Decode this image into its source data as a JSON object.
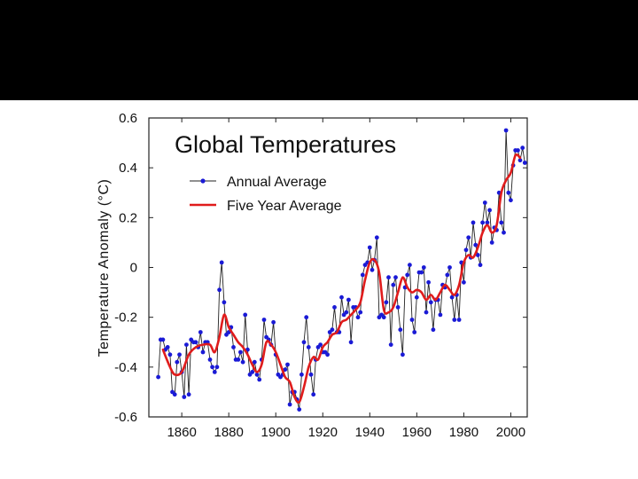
{
  "colors": {
    "band": "#000000",
    "annual": "#1a1ad6",
    "annual_line": "#222222",
    "five_year": "#e01c1c"
  },
  "chart_data": {
    "type": "line",
    "title": "Global Temperatures",
    "xlabel": "",
    "ylabel": "Temperature Anomaly (°C)",
    "xlim": [
      1846,
      2007
    ],
    "ylim": [
      -0.6,
      0.6
    ],
    "xticks": [
      1860,
      1880,
      1900,
      1920,
      1940,
      1960,
      1980,
      2000
    ],
    "xtick_labels": [
      "1860",
      "1880",
      "1900",
      "1920",
      "1940",
      "1960",
      "1980",
      "2000"
    ],
    "yticks": [
      0.6,
      0.4,
      0.2,
      0,
      -0.2,
      -0.4,
      -0.6
    ],
    "ytick_labels": [
      "0.6",
      "0.4",
      "0.2",
      "0",
      "-0.2",
      "-0.4",
      "-0.6"
    ],
    "legend": {
      "position": "upper-left",
      "annual_label": "Annual Average",
      "five_year_label": "Five Year Average"
    },
    "series": [
      {
        "name": "Annual Average",
        "style": "line+markers",
        "x_start": 1850,
        "values": [
          -0.44,
          -0.29,
          -0.29,
          -0.33,
          -0.32,
          -0.35,
          -0.5,
          -0.51,
          -0.38,
          -0.35,
          -0.42,
          -0.52,
          -0.31,
          -0.51,
          -0.29,
          -0.3,
          -0.3,
          -0.32,
          -0.26,
          -0.34,
          -0.3,
          -0.3,
          -0.37,
          -0.4,
          -0.42,
          -0.4,
          -0.09,
          0.02,
          -0.14,
          -0.27,
          -0.26,
          -0.24,
          -0.32,
          -0.37,
          -0.37,
          -0.34,
          -0.38,
          -0.19,
          -0.33,
          -0.43,
          -0.42,
          -0.38,
          -0.43,
          -0.45,
          -0.37,
          -0.21,
          -0.28,
          -0.29,
          -0.31,
          -0.22,
          -0.35,
          -0.43,
          -0.44,
          -0.43,
          -0.41,
          -0.39,
          -0.55,
          -0.5,
          -0.5,
          -0.53,
          -0.57,
          -0.43,
          -0.3,
          -0.2,
          -0.32,
          -0.43,
          -0.51,
          -0.37,
          -0.32,
          -0.31,
          -0.34,
          -0.34,
          -0.35,
          -0.26,
          -0.25,
          -0.16,
          -0.26,
          -0.26,
          -0.12,
          -0.19,
          -0.18,
          -0.13,
          -0.3,
          -0.16,
          -0.16,
          -0.2,
          -0.18,
          -0.03,
          0.01,
          0.02,
          0.08,
          -0.01,
          0.03,
          0.12,
          -0.2,
          -0.19,
          -0.2,
          -0.14,
          -0.04,
          -0.31,
          -0.07,
          -0.04,
          -0.16,
          -0.25,
          -0.35,
          -0.08,
          -0.03,
          0.01,
          -0.21,
          -0.26,
          -0.12,
          -0.02,
          -0.02,
          0.0,
          -0.18,
          -0.06,
          -0.14,
          -0.25,
          -0.13,
          -0.13,
          -0.19,
          -0.07,
          -0.08,
          -0.03,
          0.0,
          -0.12,
          -0.21,
          -0.11,
          -0.21,
          0.02,
          -0.06,
          0.07,
          0.12,
          0.04,
          0.18,
          0.09,
          0.05,
          0.01,
          0.18,
          0.26,
          0.18,
          0.23,
          0.1,
          0.16,
          0.15,
          0.3,
          0.18,
          0.14,
          0.55,
          0.3,
          0.27,
          0.41,
          0.47,
          0.47,
          0.43,
          0.48,
          0.42
        ]
      },
      {
        "name": "Five Year Average",
        "style": "smooth-line",
        "points": [
          [
            1852,
            -0.33
          ],
          [
            1855,
            -0.4
          ],
          [
            1857,
            -0.43
          ],
          [
            1860,
            -0.42
          ],
          [
            1863,
            -0.35
          ],
          [
            1866,
            -0.32
          ],
          [
            1869,
            -0.31
          ],
          [
            1872,
            -0.31
          ],
          [
            1874,
            -0.34
          ],
          [
            1876,
            -0.28
          ],
          [
            1878,
            -0.19
          ],
          [
            1880,
            -0.24
          ],
          [
            1882,
            -0.27
          ],
          [
            1884,
            -0.3
          ],
          [
            1886,
            -0.32
          ],
          [
            1888,
            -0.35
          ],
          [
            1890,
            -0.39
          ],
          [
            1892,
            -0.42
          ],
          [
            1894,
            -0.39
          ],
          [
            1896,
            -0.3
          ],
          [
            1898,
            -0.31
          ],
          [
            1900,
            -0.34
          ],
          [
            1902,
            -0.39
          ],
          [
            1904,
            -0.44
          ],
          [
            1906,
            -0.46
          ],
          [
            1908,
            -0.52
          ],
          [
            1910,
            -0.54
          ],
          [
            1912,
            -0.48
          ],
          [
            1914,
            -0.4
          ],
          [
            1916,
            -0.36
          ],
          [
            1918,
            -0.37
          ],
          [
            1920,
            -0.32
          ],
          [
            1922,
            -0.3
          ],
          [
            1924,
            -0.27
          ],
          [
            1926,
            -0.26
          ],
          [
            1928,
            -0.22
          ],
          [
            1930,
            -0.21
          ],
          [
            1932,
            -0.19
          ],
          [
            1934,
            -0.17
          ],
          [
            1936,
            -0.14
          ],
          [
            1938,
            -0.05
          ],
          [
            1940,
            0.02
          ],
          [
            1942,
            0.03
          ],
          [
            1944,
            -0.02
          ],
          [
            1946,
            -0.17
          ],
          [
            1948,
            -0.18
          ],
          [
            1950,
            -0.16
          ],
          [
            1952,
            -0.1
          ],
          [
            1954,
            -0.04
          ],
          [
            1956,
            -0.08
          ],
          [
            1958,
            -0.1
          ],
          [
            1960,
            -0.09
          ],
          [
            1962,
            -0.1
          ],
          [
            1964,
            -0.13
          ],
          [
            1966,
            -0.11
          ],
          [
            1968,
            -0.13
          ],
          [
            1970,
            -0.1
          ],
          [
            1972,
            -0.07
          ],
          [
            1974,
            -0.09
          ],
          [
            1976,
            -0.11
          ],
          [
            1978,
            -0.07
          ],
          [
            1980,
            0.02
          ],
          [
            1982,
            0.05
          ],
          [
            1984,
            0.04
          ],
          [
            1986,
            0.08
          ],
          [
            1988,
            0.14
          ],
          [
            1990,
            0.17
          ],
          [
            1992,
            0.14
          ],
          [
            1994,
            0.17
          ],
          [
            1996,
            0.3
          ],
          [
            1998,
            0.35
          ],
          [
            2000,
            0.38
          ],
          [
            2002,
            0.45
          ],
          [
            2004,
            0.44
          ]
        ]
      }
    ]
  }
}
